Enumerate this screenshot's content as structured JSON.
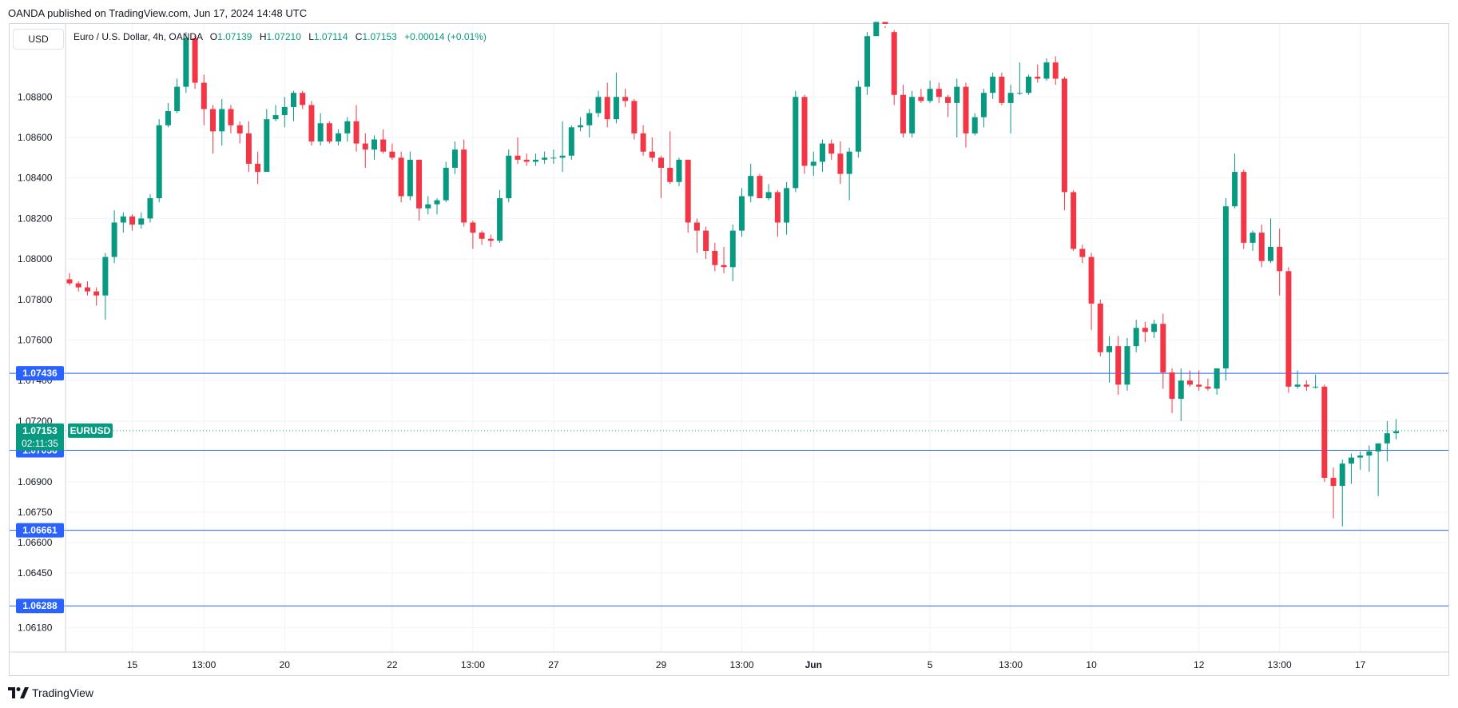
{
  "header": {
    "published": "OANDA published on TradingView.com, Jun 17, 2024 14:48 UTC",
    "currency": "USD",
    "symbol_title": "Euro / U.S. Dollar, 4h, OANDA",
    "ohlc": {
      "o_label": "O",
      "o": "1.07139",
      "h_label": "H",
      "h": "1.07210",
      "l_label": "L",
      "l": "1.07114",
      "c_label": "C",
      "c": "1.07153",
      "change": "+0.00014 (+0.01%)"
    }
  },
  "branding": {
    "name": "TradingView",
    "icon": "tradingview-logo-icon"
  },
  "colors": {
    "up": "#089981",
    "down": "#f23645",
    "line": "#2962ff",
    "grid": "#f0f3fa"
  },
  "chart_data": {
    "type": "candlestick",
    "symbol": "EURUSD",
    "timeframe": "4h",
    "ylim": [
      1.0606,
      1.0916
    ],
    "y_ticks": [
      "1.06180",
      "1.06450",
      "1.06600",
      "1.06750",
      "1.06900",
      "1.07200",
      "1.07400",
      "1.07600",
      "1.07800",
      "1.08000",
      "1.08200",
      "1.08400",
      "1.08600",
      "1.08800"
    ],
    "x_ticks": [
      {
        "label": "15",
        "bar": 7
      },
      {
        "label": "13:00",
        "bar": 15
      },
      {
        "label": "20",
        "bar": 24
      },
      {
        "label": "22",
        "bar": 36
      },
      {
        "label": "13:00",
        "bar": 45
      },
      {
        "label": "27",
        "bar": 54
      },
      {
        "label": "29",
        "bar": 66
      },
      {
        "label": "13:00",
        "bar": 75
      },
      {
        "label": "Jun",
        "bar": 83
      },
      {
        "label": "5",
        "bar": 96
      },
      {
        "label": "13:00",
        "bar": 105
      },
      {
        "label": "10",
        "bar": 114
      },
      {
        "label": "12",
        "bar": 126
      },
      {
        "label": "13:00",
        "bar": 135
      },
      {
        "label": "17",
        "bar": 144
      }
    ],
    "price_lines": [
      {
        "label": "1.07436",
        "value": 1.07436
      },
      {
        "label": "1.07056",
        "value": 1.07056
      },
      {
        "label": "1.06661",
        "value": 1.06661
      },
      {
        "label": "1.06288",
        "value": 1.06288
      }
    ],
    "last_price": {
      "value": 1.07153,
      "label": "1.07153",
      "countdown": "02:11:35",
      "symbol_label": "EURUSD"
    },
    "candles": [
      [
        1.079,
        1.0793,
        1.0787,
        1.0788
      ],
      [
        1.0788,
        1.0789,
        1.0784,
        1.0786
      ],
      [
        1.0786,
        1.0789,
        1.0782,
        1.0784
      ],
      [
        1.0784,
        1.0786,
        1.0777,
        1.0782
      ],
      [
        1.0782,
        1.0803,
        1.077,
        1.0801
      ],
      [
        1.0801,
        1.0824,
        1.0798,
        1.0818
      ],
      [
        1.0818,
        1.0823,
        1.0813,
        1.0821
      ],
      [
        1.0821,
        1.0822,
        1.0814,
        1.0817
      ],
      [
        1.0817,
        1.0823,
        1.0815,
        1.082
      ],
      [
        1.082,
        1.0832,
        1.0818,
        1.083
      ],
      [
        1.083,
        1.0869,
        1.0828,
        1.0866
      ],
      [
        1.0866,
        1.0877,
        1.0865,
        1.0873
      ],
      [
        1.0873,
        1.0889,
        1.0872,
        1.0885
      ],
      [
        1.0885,
        1.0912,
        1.0882,
        1.0909
      ],
      [
        1.0909,
        1.0911,
        1.0884,
        1.0887
      ],
      [
        1.0887,
        1.0891,
        1.0866,
        1.0874
      ],
      [
        1.0874,
        1.0876,
        1.0852,
        1.0863
      ],
      [
        1.0863,
        1.0879,
        1.0856,
        1.0874
      ],
      [
        1.0874,
        1.0876,
        1.0862,
        1.0866
      ],
      [
        1.0866,
        1.0868,
        1.0857,
        1.0862
      ],
      [
        1.0862,
        1.0868,
        1.0843,
        1.0847
      ],
      [
        1.0847,
        1.0853,
        1.0837,
        1.0843
      ],
      [
        1.0843,
        1.0874,
        1.0843,
        1.0869
      ],
      [
        1.0869,
        1.0876,
        1.0868,
        1.0871
      ],
      [
        1.0871,
        1.088,
        1.0865,
        1.0875
      ],
      [
        1.0875,
        1.0883,
        1.0868,
        1.0882
      ],
      [
        1.0882,
        1.0883,
        1.0874,
        1.0876
      ],
      [
        1.0876,
        1.0878,
        1.0856,
        1.0858
      ],
      [
        1.0858,
        1.0872,
        1.0856,
        1.0867
      ],
      [
        1.0867,
        1.0868,
        1.0857,
        1.0858
      ],
      [
        1.0858,
        1.0864,
        1.0856,
        1.0862
      ],
      [
        1.0862,
        1.087,
        1.0858,
        1.0868
      ],
      [
        1.0868,
        1.0876,
        1.0853,
        1.0857
      ],
      [
        1.0857,
        1.0862,
        1.0845,
        1.0854
      ],
      [
        1.0854,
        1.0861,
        1.0849,
        1.0859
      ],
      [
        1.0859,
        1.0864,
        1.0852,
        1.0853
      ],
      [
        1.0853,
        1.0857,
        1.0849,
        1.085
      ],
      [
        1.085,
        1.0853,
        1.0828,
        1.0831
      ],
      [
        1.0831,
        1.0853,
        1.0829,
        1.0849
      ],
      [
        1.0849,
        1.0849,
        1.0819,
        1.0825
      ],
      [
        1.0825,
        1.0831,
        1.0822,
        1.0827
      ],
      [
        1.0827,
        1.083,
        1.0822,
        1.0829
      ],
      [
        1.0829,
        1.0848,
        1.0828,
        1.0845
      ],
      [
        1.0845,
        1.0858,
        1.0842,
        1.0854
      ],
      [
        1.0854,
        1.0859,
        1.0816,
        1.0818
      ],
      [
        1.0818,
        1.0819,
        1.0805,
        1.0813
      ],
      [
        1.0813,
        1.0814,
        1.0807,
        1.081
      ],
      [
        1.081,
        1.0812,
        1.0806,
        1.0809
      ],
      [
        1.0809,
        1.0834,
        1.0808,
        1.083
      ],
      [
        1.083,
        1.0854,
        1.0828,
        1.0851
      ],
      [
        1.0851,
        1.086,
        1.0847,
        1.0849
      ],
      [
        1.0849,
        1.0852,
        1.0846,
        1.0848
      ],
      [
        1.0848,
        1.0852,
        1.0846,
        1.0849
      ],
      [
        1.0849,
        1.0853,
        1.0847,
        1.085
      ],
      [
        1.085,
        1.0854,
        1.0847,
        1.085
      ],
      [
        1.085,
        1.0868,
        1.0843,
        1.0851
      ],
      [
        1.0851,
        1.0866,
        1.0849,
        1.0865
      ],
      [
        1.0865,
        1.087,
        1.0863,
        1.0866
      ],
      [
        1.0866,
        1.0874,
        1.086,
        1.0872
      ],
      [
        1.0872,
        1.0883,
        1.087,
        1.088
      ],
      [
        1.088,
        1.0887,
        1.0865,
        1.0869
      ],
      [
        1.0869,
        1.0892,
        1.0867,
        1.088
      ],
      [
        1.088,
        1.0884,
        1.0875,
        1.0878
      ],
      [
        1.0878,
        1.0879,
        1.0859,
        1.0862
      ],
      [
        1.0862,
        1.0866,
        1.0851,
        1.0853
      ],
      [
        1.0853,
        1.086,
        1.0848,
        1.085
      ],
      [
        1.085,
        1.0851,
        1.083,
        1.0845
      ],
      [
        1.0845,
        1.0863,
        1.0837,
        1.0838
      ],
      [
        1.0838,
        1.085,
        1.0836,
        1.0849
      ],
      [
        1.0849,
        1.0849,
        1.0813,
        1.0818
      ],
      [
        1.0818,
        1.082,
        1.0803,
        1.0814
      ],
      [
        1.0814,
        1.0816,
        1.08,
        1.0804
      ],
      [
        1.0804,
        1.0808,
        1.0794,
        1.0797
      ],
      [
        1.0797,
        1.0806,
        1.0793,
        1.0796
      ],
      [
        1.0796,
        1.0817,
        1.0789,
        1.0814
      ],
      [
        1.0814,
        1.0835,
        1.0811,
        1.0831
      ],
      [
        1.0831,
        1.0847,
        1.0828,
        1.0841
      ],
      [
        1.0841,
        1.0842,
        1.083,
        1.083
      ],
      [
        1.083,
        1.0837,
        1.0829,
        1.0833
      ],
      [
        1.0833,
        1.0834,
        1.0811,
        1.0818
      ],
      [
        1.0818,
        1.0838,
        1.0812,
        1.0835
      ],
      [
        1.0835,
        1.0883,
        1.0833,
        1.088
      ],
      [
        1.088,
        1.0881,
        1.0842,
        1.0846
      ],
      [
        1.0846,
        1.0853,
        1.0841,
        1.0848
      ],
      [
        1.0848,
        1.0859,
        1.0843,
        1.0857
      ],
      [
        1.0857,
        1.0859,
        1.0849,
        1.0852
      ],
      [
        1.0852,
        1.0858,
        1.0837,
        1.0842
      ],
      [
        1.0842,
        1.0855,
        1.0829,
        1.0853
      ],
      [
        1.0853,
        1.0888,
        1.085,
        1.0885
      ],
      [
        1.0885,
        1.0912,
        1.0881,
        1.091
      ],
      [
        1.091,
        1.0915,
        1.0913,
        1.0917
      ],
      [
        1.0917,
        1.0915,
        1.0914,
        1.0916
      ],
      [
        1.0912,
        1.0913,
        1.0876,
        1.0881
      ],
      [
        1.0881,
        1.0886,
        1.086,
        1.0862
      ],
      [
        1.0862,
        1.0883,
        1.086,
        1.088
      ],
      [
        1.088,
        1.0884,
        1.0877,
        1.0878
      ],
      [
        1.0878,
        1.0888,
        1.0877,
        1.0884
      ],
      [
        1.0884,
        1.0887,
        1.0877,
        1.088
      ],
      [
        1.088,
        1.0881,
        1.087,
        1.0877
      ],
      [
        1.0877,
        1.0889,
        1.086,
        1.0885
      ],
      [
        1.0885,
        1.0887,
        1.0855,
        1.0862
      ],
      [
        1.0862,
        1.0872,
        1.0861,
        1.087
      ],
      [
        1.087,
        1.0884,
        1.0865,
        1.0882
      ],
      [
        1.0882,
        1.0892,
        1.0879,
        1.089
      ],
      [
        1.089,
        1.0892,
        1.0876,
        1.0877
      ],
      [
        1.0877,
        1.0886,
        1.0862,
        1.0882
      ],
      [
        1.0882,
        1.0897,
        1.0881,
        1.0882
      ],
      [
        1.0882,
        1.0891,
        1.0881,
        1.089
      ],
      [
        1.089,
        1.0896,
        1.0887,
        1.0889
      ],
      [
        1.0889,
        1.0899,
        1.0888,
        1.0897
      ],
      [
        1.0897,
        1.09,
        1.0886,
        1.0889
      ],
      [
        1.0889,
        1.089,
        1.0824,
        1.0833
      ],
      [
        1.0833,
        1.0834,
        1.0804,
        1.0805
      ],
      [
        1.0805,
        1.0807,
        1.0798,
        1.0801
      ],
      [
        1.0801,
        1.0803,
        1.0765,
        1.0778
      ],
      [
        1.0778,
        1.078,
        1.0752,
        1.0754
      ],
      [
        1.0754,
        1.0762,
        1.0739,
        1.0757
      ],
      [
        1.0757,
        1.0762,
        1.0733,
        1.0738
      ],
      [
        1.0738,
        1.0761,
        1.0735,
        1.0757
      ],
      [
        1.0757,
        1.077,
        1.0754,
        1.0766
      ],
      [
        1.0766,
        1.0769,
        1.0759,
        1.0764
      ],
      [
        1.0764,
        1.077,
        1.0761,
        1.0768
      ],
      [
        1.0768,
        1.0773,
        1.0736,
        1.0744
      ],
      [
        1.0744,
        1.0746,
        1.0724,
        1.0731
      ],
      [
        1.0731,
        1.0746,
        1.072,
        1.074
      ],
      [
        1.074,
        1.0745,
        1.0737,
        1.0738
      ],
      [
        1.0738,
        1.0745,
        1.0735,
        1.0737
      ],
      [
        1.0737,
        1.0741,
        1.0735,
        1.0736
      ],
      [
        1.0736,
        1.0743,
        1.0733,
        1.0746
      ],
      [
        1.0746,
        1.083,
        1.074,
        1.0826
      ],
      [
        1.0826,
        1.0852,
        1.0825,
        1.0843
      ],
      [
        1.0843,
        1.0844,
        1.0805,
        1.0808
      ],
      [
        1.0808,
        1.0814,
        1.0804,
        1.0813
      ],
      [
        1.0813,
        1.0817,
        1.0796,
        1.0799
      ],
      [
        1.0799,
        1.082,
        1.0798,
        1.0806
      ],
      [
        1.0806,
        1.0815,
        1.0782,
        1.0794
      ],
      [
        1.0794,
        1.0796,
        1.0734,
        1.0737
      ],
      [
        1.0737,
        1.0745,
        1.0736,
        1.0738
      ],
      [
        1.0738,
        1.074,
        1.0735,
        1.0737
      ],
      [
        1.0737,
        1.0743,
        1.0736,
        1.0737
      ],
      [
        1.0737,
        1.0738,
        1.069,
        1.0692
      ],
      [
        1.0692,
        1.0697,
        1.0672,
        1.0688
      ],
      [
        1.0688,
        1.0701,
        1.0668,
        1.0699
      ],
      [
        1.0699,
        1.0704,
        1.0689,
        1.0702
      ],
      [
        1.0702,
        1.0705,
        1.0696,
        1.0703
      ],
      [
        1.0703,
        1.0708,
        1.0695,
        1.0705
      ],
      [
        1.0705,
        1.0709,
        1.0683,
        1.0709
      ],
      [
        1.0709,
        1.072,
        1.07,
        1.0714
      ],
      [
        1.0714,
        1.0721,
        1.0711,
        1.0715
      ]
    ]
  }
}
